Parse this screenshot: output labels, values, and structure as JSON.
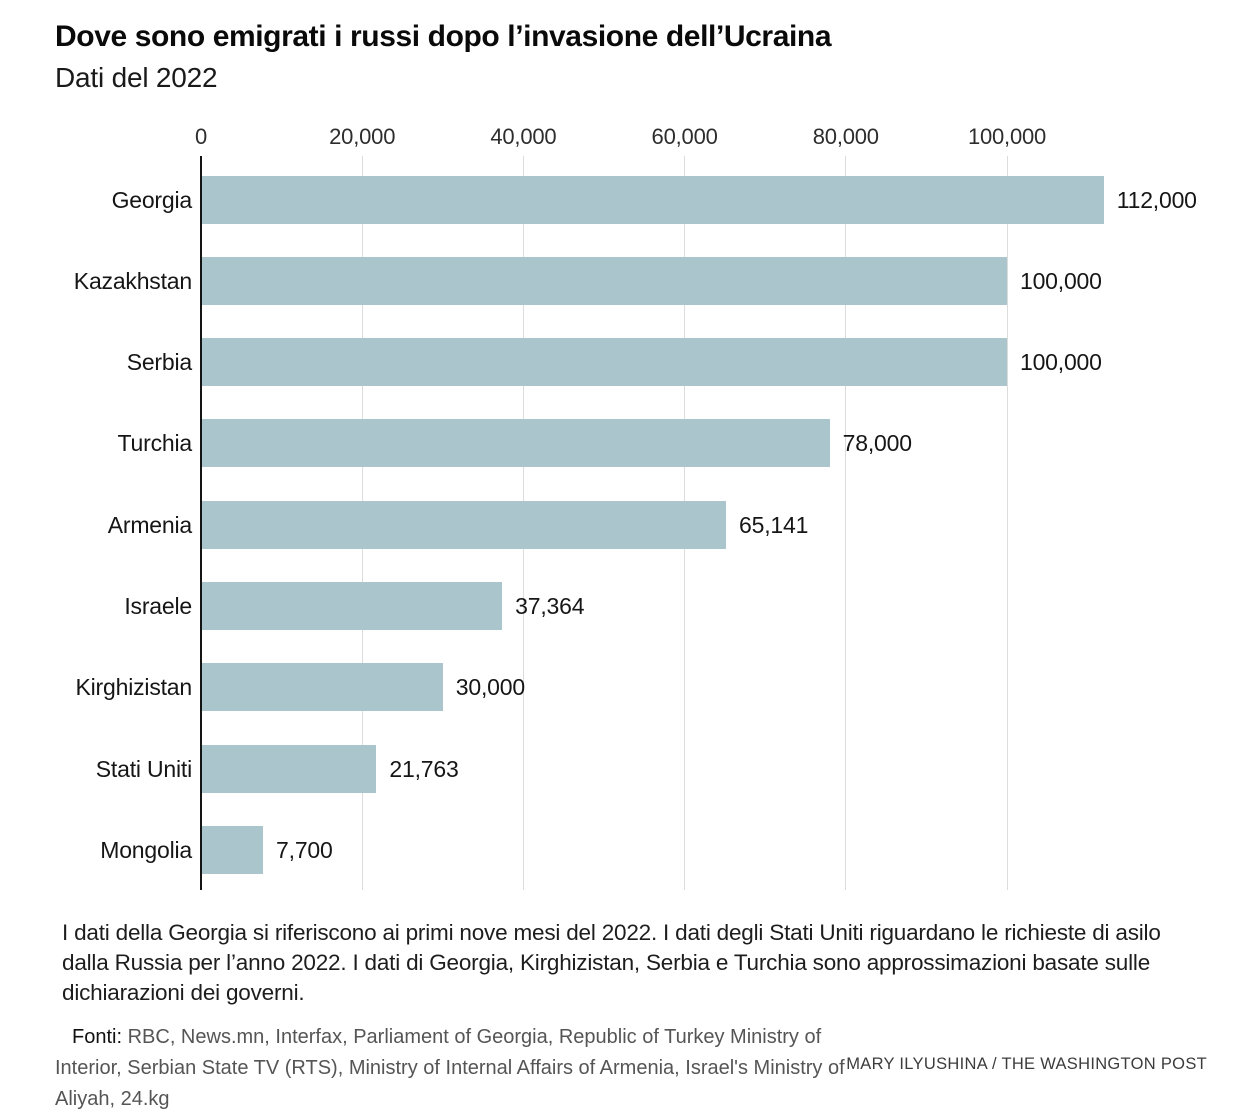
{
  "header": {
    "title": "Dove sono emigrati i russi dopo l’invasione dell’Ucraina",
    "subtitle": "Dati del 2022"
  },
  "chart_data": {
    "type": "bar",
    "orientation": "horizontal",
    "title": "Dove sono emigrati i russi dopo l’invasione dell’Ucraina",
    "subtitle": "Dati del 2022",
    "categories": [
      "Georgia",
      "Kazakhstan",
      "Serbia",
      "Turchia",
      "Armenia",
      "Israele",
      "Kirghizistan",
      "Stati Uniti",
      "Mongolia"
    ],
    "values": [
      112000,
      100000,
      100000,
      78000,
      65141,
      37364,
      30000,
      21763,
      7700
    ],
    "value_labels": [
      "112,000",
      "100,000",
      "100,000",
      "78,000",
      "65,141",
      "37,364",
      "30,000",
      "21,763",
      "7,700"
    ],
    "x_ticks": [
      {
        "label": "0",
        "value": 0
      },
      {
        "label": "20,000",
        "value": 20000
      },
      {
        "label": "40,000",
        "value": 40000
      },
      {
        "label": "60,000",
        "value": 60000
      },
      {
        "label": "80,000",
        "value": 80000
      },
      {
        "label": "100,000",
        "value": 100000
      }
    ],
    "xlim": [
      0,
      128400
    ],
    "grid": true,
    "legend": "none",
    "xlabel": "",
    "ylabel": "",
    "bar_color": "#aac5cb",
    "gridline_color": "#dcdcdc",
    "axis_color": "#141414"
  },
  "notes": {
    "text": "I dati della Georgia si riferiscono ai primi nove mesi del 2022. I dati degli Stati Uniti riguardano le richieste di asilo dalla Russia per l’anno 2022. I dati di Georgia, Kirghizistan, Serbia e Turchia sono approssimazioni basate sulle dichiarazioni dei governi."
  },
  "sources": {
    "label": "Fonti:",
    "text": " RBC, News.mn, Interfax, Parliament of Georgia, Republic of Turkey Ministry of Interior, Serbian State TV (RTS), Ministry of Internal Affairs of Armenia, Israel's Ministry of Aliyah, 24.kg"
  },
  "credit": "MARY ILYUSHINA / THE WASHINGTON POST"
}
